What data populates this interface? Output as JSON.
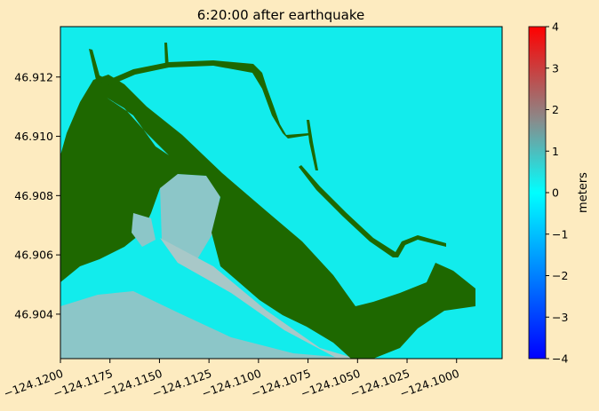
{
  "chart_data": {
    "type": "heatmap",
    "title": "6:20:00 after earthquake",
    "xlabel": "",
    "ylabel": "",
    "xlim": [
      -124.12,
      -124.0977
    ],
    "ylim": [
      46.9025,
      46.9137
    ],
    "x_ticks": [
      -124.12,
      -124.1175,
      -124.115,
      -124.1125,
      -124.11,
      -124.1075,
      -124.105,
      -124.1025,
      -124.1
    ],
    "x_tick_labels": [
      "−124.1200",
      "−124.1175",
      "−124.1150",
      "−124.1125",
      "−124.1100",
      "−124.1075",
      "−124.1050",
      "−124.1025",
      "−124.1000"
    ],
    "y_ticks": [
      46.904,
      46.906,
      46.908,
      46.91,
      46.912
    ],
    "y_tick_labels": [
      "46.904",
      "46.906",
      "46.908",
      "46.910",
      "46.912"
    ],
    "colorbar": {
      "label": "meters",
      "range": [
        -4,
        4
      ],
      "ticks": [
        -4,
        -3,
        -2,
        -1,
        0,
        1,
        2,
        3,
        4
      ],
      "tick_labels": [
        "−4",
        "−3",
        "−2",
        "−1",
        "0",
        "1",
        "2",
        "3",
        "4"
      ],
      "colors": [
        "#0000ff",
        "#007fff",
        "#00ffff",
        "#7f7f7f",
        "#ff0000"
      ]
    },
    "colors": {
      "water": "#12ecec",
      "land": "#1e6800",
      "shallow_flow": "#8cc6c8"
    }
  }
}
